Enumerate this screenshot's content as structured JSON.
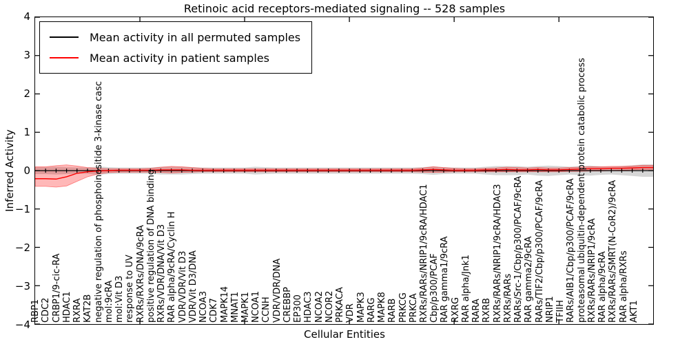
{
  "title": "Retinoic acid receptors-mediated signaling -- 528 samples",
  "axes": {
    "ylabel": "Inferred Activity",
    "xlabel": "Cellular Entities",
    "ytick_labels": [
      "4",
      "3",
      "2",
      "1",
      "0",
      "−1",
      "−2",
      "−3",
      "−4"
    ]
  },
  "legend": {
    "entries": [
      {
        "label": "Mean activity in all permuted samples",
        "color": "#000000"
      },
      {
        "label": "Mean activity in patient samples",
        "color": "#ff0000"
      }
    ]
  },
  "colors": {
    "permuted_line": "#000000",
    "permuted_band": "rgba(120,120,120,0.30)",
    "patient_line": "#ff0000",
    "patient_band": "rgba(255,0,0,0.28)",
    "patient_band_edge": "rgba(255,0,0,0.45)"
  },
  "chart_data": {
    "type": "line",
    "title": "Retinoic acid receptors-mediated signaling -- 528 samples",
    "xlabel": "Cellular Entities",
    "ylabel": "Inferred Activity",
    "ylim": [
      -4,
      4
    ],
    "grid": false,
    "legend_position": "upper left",
    "categories": [
      "RBP1",
      "CDC2",
      "CRBP1/9-cic-RA",
      "HDAC1",
      "RXRA",
      "KAT2B",
      "negative regulation of phosphoinositide 3-kinase casc",
      "mol:9cRA",
      "mol:Vit D3",
      "response to UV",
      "RXRs/RXRs/DNA/9cRA",
      "positive regulation of DNA binding",
      "RXRs/VDR/DNA/Vit D3",
      "RAR alpha/9cRA/Cyclin H",
      "VDR/VDR/Vit D3",
      "VDR/Vit D3/DNA",
      "NCOA3",
      "CDK7",
      "MAPK14",
      "MNAT1",
      "MAPK1",
      "NCOA1",
      "CCNH",
      "VDR/VDR/DNA",
      "CREBBP",
      "EP300",
      "HDAC3",
      "NCOA2",
      "NCOR2",
      "PRKACA",
      "VDR",
      "MAPK3",
      "RARG",
      "MAPK8",
      "RARB",
      "PRKCG",
      "PRKCA",
      "RXRs/RARs/NRIP1/9cRA/HDAC1",
      "Cbp/p300/PCAF",
      "RAR gamma1/9cRA",
      "RXRG",
      "RAR alpha/Jnk1",
      "RARA",
      "RXRB",
      "RXRs/RARs/NRIP1/9cRA/HDAC3",
      "RXRs/RARs",
      "RARs/Src-1/Cbp/p300/PCAF/9cRA",
      "RAR gamma2/9cRA",
      "RARs/TIF2/Cbp/p300/PCAF/9cRA",
      "NRIP1",
      "TFIIH",
      "RARs/AIB1/Cbp/p300/PCAF/9cRA",
      "proteasomal ubiquitin-dependent protein catabolic process",
      "RXRs/RARs/NRIP1/9cRA",
      "RAR alpha/9cRA",
      "RXRs/RARs/SMRT(N-CoR2)/9cRA",
      "RAR alpha/RXRs",
      "AKT1"
    ],
    "series": [
      {
        "name": "Mean activity in all permuted samples",
        "mean": [
          0,
          0,
          0,
          0,
          0,
          0,
          0,
          0,
          0,
          0,
          0,
          0,
          0,
          0,
          0,
          0,
          0,
          0,
          0,
          0,
          0,
          0,
          0,
          0,
          0,
          0,
          0,
          0,
          0,
          0,
          0,
          0,
          0,
          0,
          0,
          0,
          0,
          0,
          0,
          0,
          0,
          0,
          0,
          0,
          0,
          0,
          0,
          0,
          0,
          0,
          0,
          0,
          0,
          0,
          0,
          0,
          0,
          0
        ],
        "upper": [
          0.09,
          0.1,
          0.09,
          0.08,
          0.08,
          0.11,
          0.09,
          0.08,
          0.08,
          0.08,
          0.08,
          0.1,
          0.1,
          0.1,
          0.09,
          0.08,
          0.08,
          0.08,
          0.08,
          0.08,
          0.1,
          0.09,
          0.08,
          0.08,
          0.08,
          0.08,
          0.08,
          0.08,
          0.08,
          0.08,
          0.08,
          0.08,
          0.08,
          0.08,
          0.08,
          0.08,
          0.09,
          0.11,
          0.09,
          0.08,
          0.08,
          0.08,
          0.1,
          0.12,
          0.12,
          0.12,
          0.1,
          0.12,
          0.13,
          0.12,
          0.1,
          0.12,
          0.13,
          0.11,
          0.1,
          0.12,
          0.14,
          0.16
        ],
        "lower": [
          -0.09,
          -0.1,
          -0.09,
          -0.08,
          -0.08,
          -0.11,
          -0.09,
          -0.08,
          -0.08,
          -0.08,
          -0.08,
          -0.1,
          -0.1,
          -0.1,
          -0.09,
          -0.08,
          -0.08,
          -0.08,
          -0.08,
          -0.08,
          -0.1,
          -0.09,
          -0.08,
          -0.08,
          -0.08,
          -0.08,
          -0.08,
          -0.08,
          -0.08,
          -0.08,
          -0.08,
          -0.08,
          -0.08,
          -0.08,
          -0.08,
          -0.08,
          -0.09,
          -0.11,
          -0.09,
          -0.08,
          -0.08,
          -0.08,
          -0.1,
          -0.12,
          -0.12,
          -0.12,
          -0.1,
          -0.13,
          -0.14,
          -0.12,
          -0.1,
          -0.12,
          -0.13,
          -0.11,
          -0.1,
          -0.12,
          -0.14,
          -0.16
        ]
      },
      {
        "name": "Mean activity in patient samples",
        "mean": [
          -0.21,
          -0.22,
          -0.16,
          -0.07,
          -0.03,
          -0.01,
          0,
          0.01,
          0.01,
          0.01,
          0.01,
          0.02,
          0.02,
          0.02,
          0.01,
          0.01,
          0.01,
          0.01,
          0.01,
          0.01,
          0.01,
          0.01,
          0.01,
          0.01,
          0.01,
          0.01,
          0.01,
          0.01,
          0.01,
          0.01,
          0.01,
          0.01,
          0.01,
          0.01,
          0.01,
          0.01,
          0.02,
          0.03,
          0.02,
          0.01,
          0.01,
          0.01,
          0.02,
          0.02,
          0.03,
          0.02,
          0.02,
          0.03,
          0.02,
          0.02,
          0.03,
          0.04,
          0.05,
          0.05,
          0.06,
          0.06,
          0.07,
          0.08
        ],
        "upper": [
          0.1,
          0.13,
          0.15,
          0.12,
          0.08,
          0.06,
          0.05,
          0.05,
          0.05,
          0.05,
          0.06,
          0.09,
          0.11,
          0.1,
          0.08,
          0.06,
          0.05,
          0.05,
          0.05,
          0.05,
          0.05,
          0.05,
          0.05,
          0.05,
          0.05,
          0.05,
          0.05,
          0.05,
          0.05,
          0.05,
          0.05,
          0.05,
          0.05,
          0.05,
          0.05,
          0.05,
          0.07,
          0.1,
          0.08,
          0.06,
          0.05,
          0.05,
          0.06,
          0.07,
          0.09,
          0.08,
          0.07,
          0.08,
          0.07,
          0.07,
          0.08,
          0.09,
          0.1,
          0.1,
          0.11,
          0.11,
          0.12,
          0.14
        ],
        "lower": [
          -0.41,
          -0.43,
          -0.4,
          -0.28,
          -0.16,
          -0.09,
          -0.05,
          -0.04,
          -0.04,
          -0.04,
          -0.04,
          -0.05,
          -0.06,
          -0.05,
          -0.04,
          -0.03,
          -0.03,
          -0.03,
          -0.03,
          -0.03,
          -0.03,
          -0.03,
          -0.03,
          -0.03,
          -0.03,
          -0.03,
          -0.03,
          -0.03,
          -0.03,
          -0.03,
          -0.03,
          -0.03,
          -0.03,
          -0.03,
          -0.03,
          -0.03,
          -0.04,
          -0.05,
          -0.04,
          -0.03,
          -0.03,
          -0.03,
          -0.03,
          -0.03,
          -0.03,
          -0.03,
          -0.03,
          -0.03,
          -0.03,
          -0.03,
          -0.02,
          -0.02,
          -0.01,
          -0.01,
          0,
          0.01,
          0.02,
          0.03
        ]
      }
    ],
    "xticks_major": [
      10,
      20,
      30,
      40,
      50
    ]
  }
}
